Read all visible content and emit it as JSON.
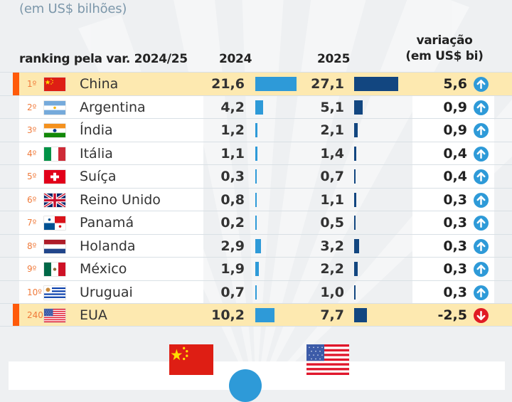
{
  "subtitle": "(em US$ bilhões)",
  "headers": {
    "ranking": "ranking pela var. 2024/25",
    "y2024": "2024",
    "y2025": "2025",
    "variation_line1": "variação",
    "variation_line2": "(em US$ bi)"
  },
  "colors": {
    "bar_2024": "#2e9ad8",
    "bar_2025": "#124680",
    "highlight": "#fde9b0",
    "marker": "#ff5a0a",
    "up_arrow": "#2e9ad8",
    "down_arrow": "#e01b24"
  },
  "chart_data": {
    "type": "table",
    "title": "(em US$ bilhões)",
    "columns": [
      "ranking pela var. 2024/25",
      "2024",
      "2025",
      "variação (em US$ bi)"
    ],
    "rows": [
      {
        "rank": "1º",
        "country": "China",
        "flag": "china-flag",
        "v2024": 21.6,
        "v2025": 27.1,
        "variation": 5.6,
        "trend": "up",
        "highlight": true
      },
      {
        "rank": "2º",
        "country": "Argentina",
        "flag": "argentina-flag",
        "v2024": 4.2,
        "v2025": 5.1,
        "variation": 0.9,
        "trend": "up",
        "highlight": false
      },
      {
        "rank": "3º",
        "country": "Índia",
        "flag": "india-flag",
        "v2024": 1.2,
        "v2025": 2.1,
        "variation": 0.9,
        "trend": "up",
        "highlight": false
      },
      {
        "rank": "4º",
        "country": "Itália",
        "flag": "italy-flag",
        "v2024": 1.1,
        "v2025": 1.4,
        "variation": 0.4,
        "trend": "up",
        "highlight": false
      },
      {
        "rank": "5º",
        "country": "Suíça",
        "flag": "switzerland-flag",
        "v2024": 0.3,
        "v2025": 0.7,
        "variation": 0.4,
        "trend": "up",
        "highlight": false
      },
      {
        "rank": "6º",
        "country": "Reino Unido",
        "flag": "uk-flag",
        "v2024": 0.8,
        "v2025": 1.1,
        "variation": 0.3,
        "trend": "up",
        "highlight": false
      },
      {
        "rank": "7º",
        "country": "Panamá",
        "flag": "panama-flag",
        "v2024": 0.2,
        "v2025": 0.5,
        "variation": 0.3,
        "trend": "up",
        "highlight": false
      },
      {
        "rank": "8º",
        "country": "Holanda",
        "flag": "netherlands-flag",
        "v2024": 2.9,
        "v2025": 3.2,
        "variation": 0.3,
        "trend": "up",
        "highlight": false
      },
      {
        "rank": "9º",
        "country": "México",
        "flag": "mexico-flag",
        "v2024": 1.9,
        "v2025": 2.2,
        "variation": 0.3,
        "trend": "up",
        "highlight": false
      },
      {
        "rank": "10º",
        "country": "Uruguai",
        "flag": "uruguay-flag",
        "v2024": 0.7,
        "v2025": 1.0,
        "variation": 0.3,
        "trend": "up",
        "highlight": false
      },
      {
        "rank": "240º",
        "country": "EUA",
        "flag": "usa-flag",
        "v2024": 10.2,
        "v2025": 7.7,
        "variation": -2.5,
        "trend": "down",
        "highlight": true
      }
    ],
    "display": {
      "v2024": [
        "21,6",
        "4,2",
        "1,2",
        "1,1",
        "0,3",
        "0,8",
        "0,2",
        "2,9",
        "1,9",
        "0,7",
        "10,2"
      ],
      "v2025": [
        "27,1",
        "5,1",
        "2,1",
        "1,4",
        "0,7",
        "1,1",
        "0,5",
        "3,2",
        "2,2",
        "1,0",
        "7,7"
      ],
      "variation": [
        "5,6",
        "0,9",
        "0,9",
        "0,4",
        "0,4",
        "0,3",
        "0,3",
        "0,3",
        "0,3",
        "0,3",
        "-2,5"
      ]
    }
  },
  "bottom": {
    "flags": [
      "china-flag",
      "usa-flag"
    ]
  }
}
